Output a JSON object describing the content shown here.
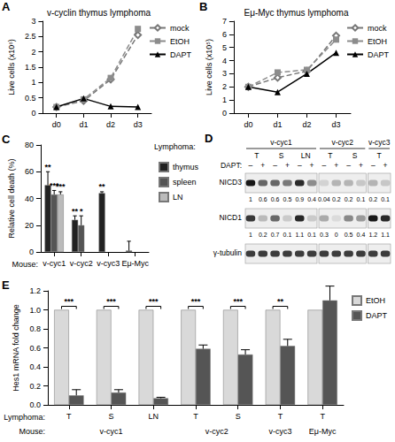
{
  "chart_data": [
    {
      "panel": "A",
      "type": "line",
      "title": "v-cyclin thymus lymphoma",
      "ylabel": "Live cells (x10⁶)",
      "categories": [
        "d0",
        "d1",
        "d2",
        "d3"
      ],
      "series": [
        {
          "name": "mock",
          "color": "#777777",
          "marker": "emptyDiamond",
          "line_style": "dashed",
          "values": [
            0.2,
            0.4,
            1.1,
            2.55
          ]
        },
        {
          "name": "EtOH",
          "color": "#8c8c8c",
          "marker": "square",
          "line_style": "dashed",
          "values": [
            0.2,
            0.45,
            1.15,
            2.75
          ]
        },
        {
          "name": "DAPT",
          "color": "#000000",
          "marker": "triangle",
          "line_style": "solid",
          "values": [
            0.2,
            0.48,
            0.22,
            0.2
          ]
        }
      ],
      "ylim": [
        0,
        3
      ],
      "yticks": [
        0,
        0.5,
        1,
        1.5,
        2,
        2.5,
        3
      ],
      "grid": false,
      "legend": "right"
    },
    {
      "panel": "B",
      "type": "line",
      "title": "Eμ-Myc thymus lymphoma",
      "ylabel": "Live cells (x10⁵)",
      "categories": [
        "d0",
        "d1",
        "d2",
        "d3"
      ],
      "series": [
        {
          "name": "mock",
          "color": "#777777",
          "marker": "emptyDiamond",
          "line_style": "dashed",
          "values": [
            2.0,
            2.7,
            3.2,
            5.9
          ]
        },
        {
          "name": "EtOH",
          "color": "#8c8c8c",
          "marker": "square",
          "line_style": "dashed",
          "values": [
            2.0,
            3.1,
            3.3,
            5.6
          ]
        },
        {
          "name": "DAPT",
          "color": "#000000",
          "marker": "triangle",
          "line_style": "solid",
          "values": [
            2.0,
            1.6,
            3.0,
            4.6
          ]
        }
      ],
      "ylim": [
        0,
        7
      ],
      "yticks": [
        0,
        1,
        2,
        3,
        4,
        5,
        6,
        7
      ],
      "grid": false,
      "legend": "right"
    },
    {
      "panel": "C",
      "type": "bar",
      "ylabel": "Relative cell death (%)",
      "xlabel": "Mouse:",
      "legend_title": "Lymphoma:",
      "categories": [
        "v-cyc1",
        "v-cyc2",
        "v-cyc3",
        "Eμ-Myc"
      ],
      "series": [
        {
          "name": "thymus",
          "color": "#222222",
          "values": [
            50,
            24,
            44,
            1
          ],
          "errors": [
            10,
            3,
            1,
            7
          ],
          "significance": [
            "**",
            "**",
            "**",
            null
          ]
        },
        {
          "name": "spleen",
          "color": "#555555",
          "values": [
            43,
            20,
            null,
            null
          ],
          "errors": [
            3,
            7,
            null,
            null
          ],
          "significance": [
            "***",
            "*",
            null,
            null
          ]
        },
        {
          "name": "LN",
          "color": "#bbbbbb",
          "values": [
            43,
            null,
            null,
            null
          ],
          "errors": [
            2,
            null,
            null,
            null
          ],
          "significance": [
            "***",
            null,
            null,
            null
          ]
        }
      ],
      "ylim": [
        0,
        80
      ],
      "yticks": [
        0,
        20,
        40,
        60,
        80
      ],
      "grid": false,
      "legend": "right"
    },
    {
      "panel": "E",
      "type": "bar",
      "ylabel": "Hes1 mRNA fold change",
      "xlabel": "Lymphoma:",
      "group_label": "Mouse:",
      "categories": [
        "T",
        "S",
        "LN",
        "T",
        "S",
        "T",
        "T"
      ],
      "groups": [
        {
          "label": "v-cyc1",
          "size": 3
        },
        {
          "label": "v-cyc2",
          "size": 2
        },
        {
          "label": "v-cyc3",
          "size": 1
        },
        {
          "label": "Eμ-Myc",
          "size": 1
        }
      ],
      "series": [
        {
          "name": "EtOH",
          "color": "#d9d9d9",
          "values": [
            1,
            1,
            1,
            1,
            1,
            1,
            1
          ]
        },
        {
          "name": "DAPT",
          "color": "#555555",
          "values": [
            0.1,
            0.13,
            0.07,
            0.59,
            0.53,
            0.62,
            1.1
          ],
          "errors": [
            0.06,
            0.03,
            0.01,
            0.04,
            0.05,
            0.07,
            0.15
          ]
        }
      ],
      "significance": [
        "***",
        "***",
        "***",
        "***",
        "***",
        "**",
        null
      ],
      "ylim": [
        0,
        1.2
      ],
      "yticks": [
        {
          "value": 0,
          "label": "0.0"
        },
        0.2,
        0.4,
        0.6,
        0.8,
        {
          "value": 1,
          "label": "1.0"
        },
        1.2
      ],
      "grid": false,
      "legend": "right"
    }
  ],
  "blot": {
    "panel": "D",
    "mice": [
      {
        "label": "v-cyc1",
        "lymphomas": [
          "T",
          "S",
          "LN"
        ]
      },
      {
        "label": "v-cyc2",
        "lymphomas": [
          "T",
          "S"
        ]
      },
      {
        "label": "v-cyc3",
        "lymphomas": [
          "T"
        ]
      }
    ],
    "treatment_label": "DAPT:",
    "treatment": [
      "–",
      "+"
    ],
    "rows": [
      {
        "label": "NICD3",
        "values": [
          1,
          0.6,
          0.6,
          0.5,
          0.9,
          0.4,
          0.04,
          0.2,
          0.2,
          0.1,
          0.2,
          0.1
        ]
      },
      {
        "label": "NICD1",
        "values": [
          1,
          0.2,
          0.7,
          0.1,
          1.1,
          0.1,
          0.3,
          0,
          0.5,
          0.4,
          1.2,
          1.1
        ]
      },
      {
        "label": "γ-tubulin"
      }
    ]
  }
}
